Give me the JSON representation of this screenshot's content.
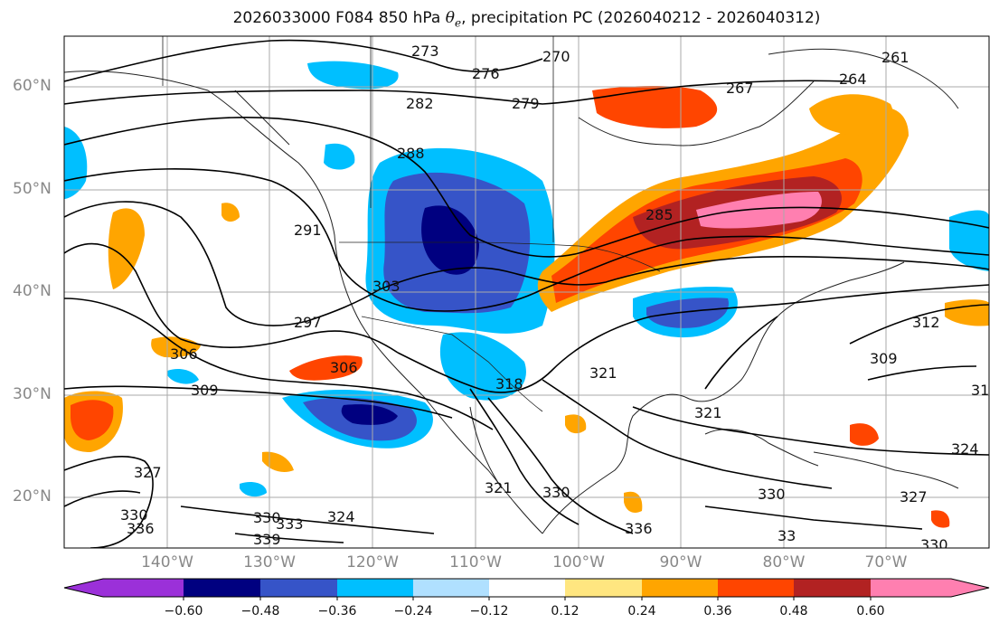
{
  "title": {
    "prefix": "2026033000 F084 850 hPa ",
    "theta": "θ",
    "sub": "e",
    "suffix": ", precipitation PC (2026040212 - 2026040312)"
  },
  "map": {
    "region": "North America and eastern Pacific",
    "projection": "PlateCarree",
    "lon_range": [
      -150,
      -60
    ],
    "lat_range": [
      15,
      65
    ],
    "lat_ticks": [
      "60°N",
      "50°N",
      "40°N",
      "30°N",
      "20°N"
    ],
    "lon_ticks": [
      "140°W",
      "130°W",
      "120°W",
      "110°W",
      "100°W",
      "90°W",
      "80°W",
      "70°W"
    ],
    "gridlines": true,
    "contour_field": "850 hPa equivalent potential temperature (K)",
    "contour_labels": [
      "273",
      "276",
      "270",
      "261",
      "264",
      "267",
      "282",
      "279",
      "288",
      "291",
      "285",
      "297",
      "303",
      "306",
      "306",
      "309",
      "312",
      "309",
      "31",
      "318",
      "321",
      "321",
      "324",
      "327",
      "330",
      "330",
      "336",
      "339",
      "330",
      "333",
      "327",
      "330",
      "324",
      "330",
      "321",
      "336",
      "33"
    ],
    "shaded_field": "precipitation PC"
  },
  "colorbar": {
    "ticks": [
      "−0.60",
      "−0.48",
      "−0.36",
      "−0.24",
      "−0.12",
      "0.12",
      "0.24",
      "0.36",
      "0.48",
      "0.60"
    ],
    "colors": [
      "#9b30d9",
      "#000080",
      "#3654c8",
      "#00bfff",
      "#b0e0ff",
      "#ffffff",
      "#ffe680",
      "#ffa500",
      "#ff4500",
      "#b22222",
      "#ff7fb0"
    ]
  }
}
